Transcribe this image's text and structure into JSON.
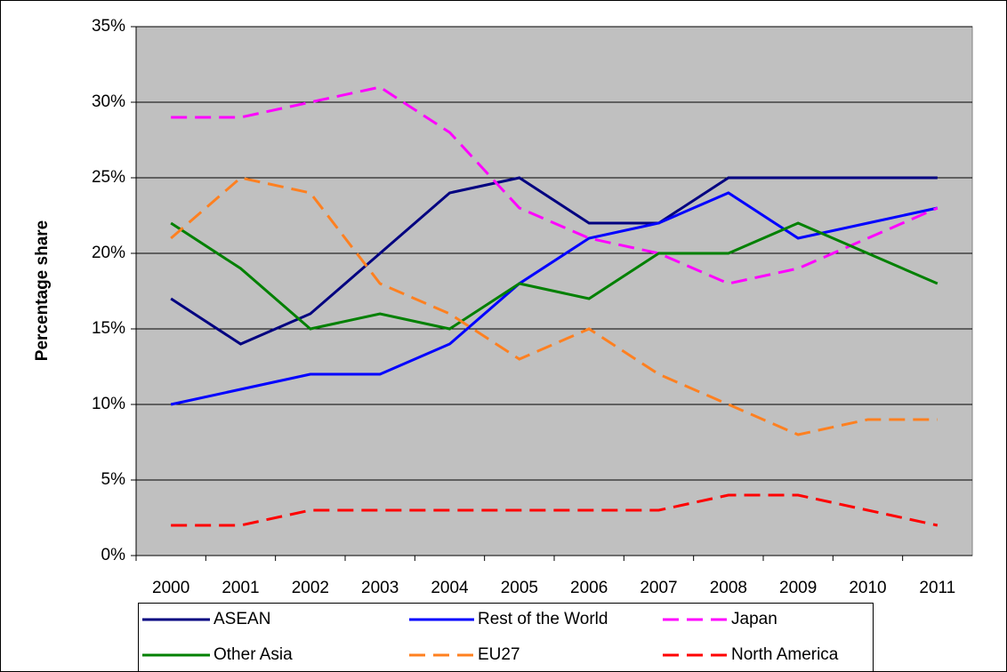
{
  "chart_data": {
    "type": "line",
    "ylabel": "Percentage share",
    "categories": [
      "2000",
      "2001",
      "2002",
      "2003",
      "2004",
      "2005",
      "2006",
      "2007",
      "2008",
      "2009",
      "2010",
      "2011"
    ],
    "ylim": [
      0,
      35
    ],
    "yticks": [
      {
        "value": 0,
        "label": "0%"
      },
      {
        "value": 5,
        "label": "5%"
      },
      {
        "value": 10,
        "label": "10%"
      },
      {
        "value": 15,
        "label": "15%"
      },
      {
        "value": 20,
        "label": "20%"
      },
      {
        "value": 25,
        "label": "25%"
      },
      {
        "value": 30,
        "label": "30%"
      },
      {
        "value": 35,
        "label": "35%"
      }
    ],
    "grid": true,
    "legend": "bottom",
    "series": [
      {
        "name": "ASEAN",
        "color": "#000080",
        "dashed": false,
        "values": [
          17,
          14,
          16,
          20,
          24,
          25,
          22,
          22,
          25,
          25,
          25,
          25
        ]
      },
      {
        "name": "Rest of the World",
        "color": "#0000ff",
        "dashed": false,
        "values": [
          10,
          11,
          12,
          12,
          14,
          18,
          21,
          22,
          24,
          21,
          22,
          23
        ]
      },
      {
        "name": "Japan",
        "color": "#ff00ff",
        "dashed": true,
        "values": [
          29,
          29,
          30,
          31,
          28,
          23,
          21,
          20,
          18,
          19,
          21,
          23
        ]
      },
      {
        "name": "Other Asia",
        "color": "#008000",
        "dashed": false,
        "values": [
          22,
          19,
          15,
          16,
          15,
          18,
          17,
          20,
          20,
          22,
          20,
          18
        ]
      },
      {
        "name": "EU27",
        "color": "#ff8020",
        "dashed": true,
        "values": [
          21,
          25,
          24,
          18,
          16,
          13,
          15,
          12,
          10,
          8,
          9,
          9
        ]
      },
      {
        "name": "North America",
        "color": "#ff0000",
        "dashed": true,
        "values": [
          2,
          2,
          3,
          3,
          3,
          3,
          3,
          3,
          4,
          4,
          3,
          2
        ]
      }
    ]
  }
}
